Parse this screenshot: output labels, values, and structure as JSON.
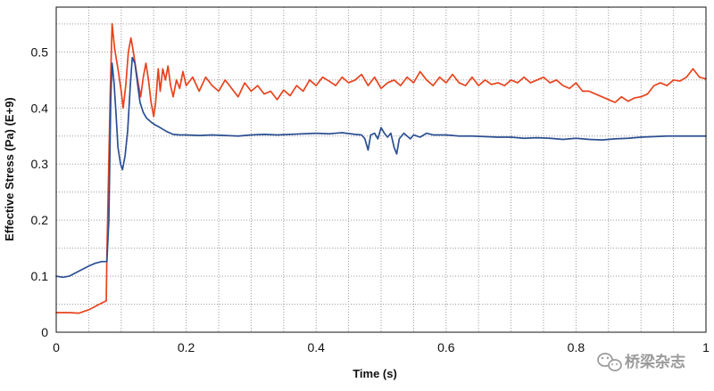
{
  "chart_data": {
    "type": "line",
    "title": "",
    "xlabel": "Time (s)",
    "ylabel": "Effective Stress (Pa) (E+9)",
    "xlim": [
      0,
      1
    ],
    "ylim": [
      0,
      0.58
    ],
    "grid": true,
    "x_ticks": [
      0,
      0.2,
      0.4,
      0.6,
      0.8,
      1
    ],
    "y_ticks": [
      0,
      0.1,
      0.2,
      0.3,
      0.4,
      0.5
    ],
    "x_tick_labels": [
      "0",
      "0.2",
      "0.4",
      "0.6",
      "0.8",
      "1"
    ],
    "y_tick_labels": [
      "0",
      "0.1",
      "0.2",
      "0.3",
      "0.4",
      "0.5"
    ],
    "series": [
      {
        "color": "#e8431c",
        "points": [
          [
            0.0,
            0.035
          ],
          [
            0.02,
            0.035
          ],
          [
            0.035,
            0.034
          ],
          [
            0.05,
            0.04
          ],
          [
            0.07,
            0.052
          ],
          [
            0.077,
            0.056
          ],
          [
            0.078,
            0.14
          ],
          [
            0.083,
            0.42
          ],
          [
            0.086,
            0.55
          ],
          [
            0.09,
            0.505
          ],
          [
            0.095,
            0.47
          ],
          [
            0.1,
            0.43
          ],
          [
            0.103,
            0.4
          ],
          [
            0.107,
            0.44
          ],
          [
            0.111,
            0.5
          ],
          [
            0.115,
            0.525
          ],
          [
            0.118,
            0.505
          ],
          [
            0.122,
            0.475
          ],
          [
            0.126,
            0.445
          ],
          [
            0.13,
            0.42
          ],
          [
            0.134,
            0.455
          ],
          [
            0.138,
            0.48
          ],
          [
            0.142,
            0.45
          ],
          [
            0.146,
            0.41
          ],
          [
            0.15,
            0.385
          ],
          [
            0.153,
            0.41
          ],
          [
            0.157,
            0.47
          ],
          [
            0.16,
            0.43
          ],
          [
            0.164,
            0.47
          ],
          [
            0.168,
            0.45
          ],
          [
            0.172,
            0.475
          ],
          [
            0.176,
            0.44
          ],
          [
            0.18,
            0.42
          ],
          [
            0.185,
            0.45
          ],
          [
            0.19,
            0.435
          ],
          [
            0.195,
            0.465
          ],
          [
            0.2,
            0.44
          ],
          [
            0.21,
            0.455
          ],
          [
            0.22,
            0.43
          ],
          [
            0.23,
            0.455
          ],
          [
            0.24,
            0.44
          ],
          [
            0.25,
            0.43
          ],
          [
            0.26,
            0.45
          ],
          [
            0.27,
            0.435
          ],
          [
            0.28,
            0.42
          ],
          [
            0.29,
            0.445
          ],
          [
            0.3,
            0.43
          ],
          [
            0.31,
            0.44
          ],
          [
            0.32,
            0.425
          ],
          [
            0.33,
            0.43
          ],
          [
            0.34,
            0.415
          ],
          [
            0.35,
            0.432
          ],
          [
            0.36,
            0.422
          ],
          [
            0.37,
            0.44
          ],
          [
            0.38,
            0.43
          ],
          [
            0.39,
            0.45
          ],
          [
            0.4,
            0.44
          ],
          [
            0.41,
            0.455
          ],
          [
            0.42,
            0.448
          ],
          [
            0.43,
            0.44
          ],
          [
            0.44,
            0.455
          ],
          [
            0.45,
            0.445
          ],
          [
            0.46,
            0.45
          ],
          [
            0.47,
            0.46
          ],
          [
            0.48,
            0.44
          ],
          [
            0.49,
            0.455
          ],
          [
            0.5,
            0.435
          ],
          [
            0.51,
            0.445
          ],
          [
            0.52,
            0.45
          ],
          [
            0.53,
            0.44
          ],
          [
            0.54,
            0.455
          ],
          [
            0.55,
            0.445
          ],
          [
            0.56,
            0.465
          ],
          [
            0.57,
            0.45
          ],
          [
            0.58,
            0.44
          ],
          [
            0.59,
            0.455
          ],
          [
            0.6,
            0.445
          ],
          [
            0.61,
            0.46
          ],
          [
            0.62,
            0.445
          ],
          [
            0.63,
            0.44
          ],
          [
            0.64,
            0.455
          ],
          [
            0.65,
            0.44
          ],
          [
            0.66,
            0.45
          ],
          [
            0.67,
            0.442
          ],
          [
            0.68,
            0.445
          ],
          [
            0.69,
            0.44
          ],
          [
            0.7,
            0.45
          ],
          [
            0.71,
            0.445
          ],
          [
            0.72,
            0.455
          ],
          [
            0.73,
            0.445
          ],
          [
            0.74,
            0.45
          ],
          [
            0.75,
            0.455
          ],
          [
            0.76,
            0.445
          ],
          [
            0.77,
            0.45
          ],
          [
            0.78,
            0.44
          ],
          [
            0.79,
            0.435
          ],
          [
            0.8,
            0.445
          ],
          [
            0.81,
            0.43
          ],
          [
            0.82,
            0.43
          ],
          [
            0.83,
            0.425
          ],
          [
            0.84,
            0.42
          ],
          [
            0.85,
            0.415
          ],
          [
            0.86,
            0.41
          ],
          [
            0.87,
            0.42
          ],
          [
            0.88,
            0.412
          ],
          [
            0.89,
            0.418
          ],
          [
            0.9,
            0.42
          ],
          [
            0.91,
            0.425
          ],
          [
            0.92,
            0.44
          ],
          [
            0.93,
            0.445
          ],
          [
            0.94,
            0.44
          ],
          [
            0.95,
            0.45
          ],
          [
            0.96,
            0.448
          ],
          [
            0.97,
            0.455
          ],
          [
            0.98,
            0.47
          ],
          [
            0.99,
            0.455
          ],
          [
            1.0,
            0.452
          ]
        ]
      },
      {
        "color": "#2b4f92",
        "points": [
          [
            0.0,
            0.1
          ],
          [
            0.01,
            0.098
          ],
          [
            0.02,
            0.1
          ],
          [
            0.03,
            0.106
          ],
          [
            0.04,
            0.112
          ],
          [
            0.05,
            0.118
          ],
          [
            0.06,
            0.123
          ],
          [
            0.07,
            0.126
          ],
          [
            0.078,
            0.126
          ],
          [
            0.081,
            0.2
          ],
          [
            0.084,
            0.42
          ],
          [
            0.086,
            0.48
          ],
          [
            0.089,
            0.445
          ],
          [
            0.092,
            0.39
          ],
          [
            0.095,
            0.33
          ],
          [
            0.099,
            0.3
          ],
          [
            0.102,
            0.29
          ],
          [
            0.106,
            0.315
          ],
          [
            0.11,
            0.36
          ],
          [
            0.114,
            0.44
          ],
          [
            0.117,
            0.49
          ],
          [
            0.121,
            0.48
          ],
          [
            0.125,
            0.445
          ],
          [
            0.129,
            0.41
          ],
          [
            0.134,
            0.392
          ],
          [
            0.139,
            0.382
          ],
          [
            0.146,
            0.375
          ],
          [
            0.152,
            0.37
          ],
          [
            0.16,
            0.365
          ],
          [
            0.17,
            0.358
          ],
          [
            0.18,
            0.353
          ],
          [
            0.19,
            0.352
          ],
          [
            0.2,
            0.352
          ],
          [
            0.22,
            0.351
          ],
          [
            0.24,
            0.352
          ],
          [
            0.26,
            0.351
          ],
          [
            0.28,
            0.35
          ],
          [
            0.3,
            0.352
          ],
          [
            0.32,
            0.353
          ],
          [
            0.34,
            0.352
          ],
          [
            0.36,
            0.353
          ],
          [
            0.38,
            0.354
          ],
          [
            0.4,
            0.355
          ],
          [
            0.42,
            0.354
          ],
          [
            0.44,
            0.356
          ],
          [
            0.46,
            0.353
          ],
          [
            0.47,
            0.352
          ],
          [
            0.475,
            0.345
          ],
          [
            0.48,
            0.325
          ],
          [
            0.484,
            0.352
          ],
          [
            0.49,
            0.355
          ],
          [
            0.495,
            0.345
          ],
          [
            0.5,
            0.365
          ],
          [
            0.505,
            0.355
          ],
          [
            0.51,
            0.348
          ],
          [
            0.515,
            0.355
          ],
          [
            0.52,
            0.33
          ],
          [
            0.524,
            0.318
          ],
          [
            0.528,
            0.345
          ],
          [
            0.535,
            0.355
          ],
          [
            0.545,
            0.345
          ],
          [
            0.55,
            0.352
          ],
          [
            0.56,
            0.348
          ],
          [
            0.57,
            0.355
          ],
          [
            0.58,
            0.352
          ],
          [
            0.6,
            0.352
          ],
          [
            0.62,
            0.35
          ],
          [
            0.64,
            0.35
          ],
          [
            0.66,
            0.349
          ],
          [
            0.68,
            0.348
          ],
          [
            0.7,
            0.348
          ],
          [
            0.72,
            0.346
          ],
          [
            0.74,
            0.347
          ],
          [
            0.76,
            0.346
          ],
          [
            0.78,
            0.344
          ],
          [
            0.8,
            0.346
          ],
          [
            0.82,
            0.344
          ],
          [
            0.84,
            0.343
          ],
          [
            0.86,
            0.345
          ],
          [
            0.88,
            0.346
          ],
          [
            0.9,
            0.348
          ],
          [
            0.92,
            0.349
          ],
          [
            0.94,
            0.35
          ],
          [
            0.96,
            0.35
          ],
          [
            0.98,
            0.35
          ],
          [
            1.0,
            0.35
          ]
        ]
      }
    ]
  },
  "watermark": {
    "text": "桥梁杂志",
    "icon": "wechat-icon"
  }
}
